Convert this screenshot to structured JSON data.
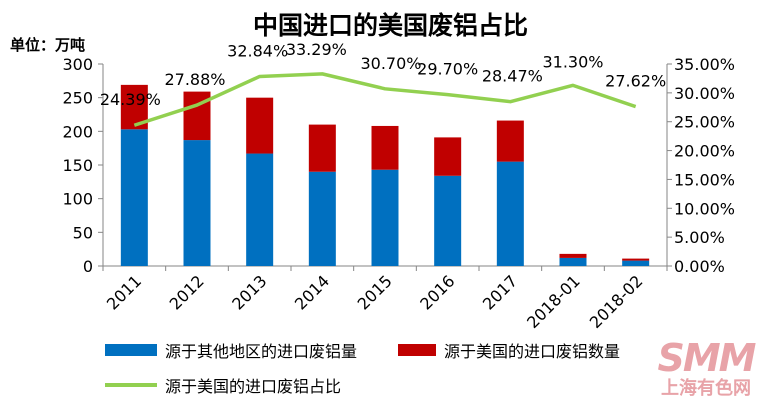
{
  "chart_data": {
    "type": "bar",
    "title": "中国进口的美国废铝占比",
    "unit_label": "单位：万吨",
    "categories": [
      "2011",
      "2012",
      "2013",
      "2014",
      "2015",
      "2016",
      "2017",
      "2018-01",
      "2018-02"
    ],
    "series": [
      {
        "name": "源于其他地区的进口废铝量",
        "type": "bar",
        "stack": "main",
        "axis": "left",
        "color": "#0070c0",
        "values": [
          203,
          187,
          167,
          140,
          143,
          134,
          155,
          12,
          8
        ]
      },
      {
        "name": "源于美国的进口废铝数量",
        "type": "bar",
        "stack": "main",
        "axis": "left",
        "color": "#c00000",
        "values": [
          66,
          72,
          83,
          70,
          65,
          57,
          61,
          6,
          3
        ]
      },
      {
        "name": "源于美国的进口废铝占比",
        "type": "line",
        "axis": "right",
        "color": "#92d050",
        "values": [
          24.39,
          27.88,
          32.84,
          33.29,
          30.7,
          29.7,
          28.47,
          31.3,
          27.62
        ],
        "labels": [
          "24.39%",
          "27.88%",
          "32.84%",
          "33.29%",
          "30.70%",
          "29.70%",
          "28.47%",
          "31.30%",
          "27.62%"
        ]
      }
    ],
    "y_left": {
      "min": 0,
      "max": 300,
      "step": 50,
      "ticks": [
        "0",
        "50",
        "100",
        "150",
        "200",
        "250",
        "300"
      ]
    },
    "y_right": {
      "min": 0,
      "max": 35,
      "step": 5,
      "ticks": [
        "0.00%",
        "5.00%",
        "10.00%",
        "15.00%",
        "20.00%",
        "25.00%",
        "30.00%",
        "35.00%"
      ]
    },
    "grid": false,
    "legend_position": "bottom"
  },
  "watermark": {
    "text_big": "SMM",
    "text_small": "上海有色网",
    "color": "#e8a3a8"
  }
}
